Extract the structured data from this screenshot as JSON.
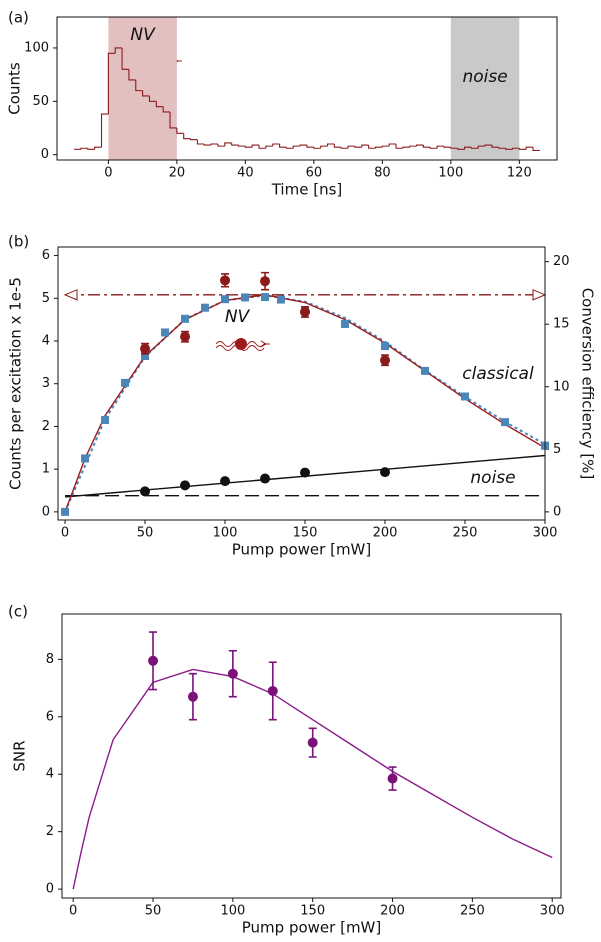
{
  "chart_data": [
    {
      "type": "histogram",
      "panel_label": "(a)",
      "xlabel": "Time [ns]",
      "ylabel": "Counts",
      "bins": [
        -10,
        -8,
        -6,
        -4,
        -2,
        0,
        2,
        4,
        6,
        8,
        10,
        12,
        14,
        16,
        18,
        20,
        22,
        24,
        26,
        28,
        30,
        32,
        34,
        36,
        38,
        40,
        42,
        44,
        46,
        48,
        50,
        52,
        54,
        56,
        58,
        60,
        62,
        64,
        66,
        68,
        70,
        72,
        74,
        76,
        78,
        80,
        82,
        84,
        86,
        88,
        90,
        92,
        94,
        96,
        98,
        100,
        102,
        104,
        106,
        108,
        110,
        112,
        114,
        116,
        118,
        120,
        122,
        124,
        126
      ],
      "counts": [
        5,
        6,
        5,
        7,
        38,
        95,
        100,
        80,
        70,
        60,
        55,
        50,
        45,
        40,
        25,
        20,
        15,
        14,
        10,
        9,
        10,
        8,
        11,
        9,
        8,
        7,
        9,
        6,
        8,
        10,
        7,
        6,
        8,
        9,
        7,
        6,
        8,
        10,
        7,
        6,
        8,
        7,
        9,
        6,
        7,
        8,
        10,
        6,
        7,
        8,
        9,
        7,
        6,
        8,
        7,
        6,
        5,
        7,
        6,
        8,
        9,
        7,
        6,
        5,
        6,
        5,
        7,
        4
      ],
      "color": "#8b1a1a",
      "xlim": [
        -15,
        131
      ],
      "ylim": [
        -5,
        129
      ],
      "xticks": [
        0,
        20,
        40,
        60,
        80,
        100,
        120
      ],
      "yticks": [
        0,
        50,
        100
      ],
      "regions": [
        {
          "start": 0,
          "end": 20,
          "label": "NV",
          "color": "#e3c0c0",
          "label_color": "#a01c1c"
        },
        {
          "start": 100,
          "end": 120,
          "label": "noise",
          "color": "#c9c9c9",
          "label_color": "#111111"
        }
      ]
    },
    {
      "type": "scatter",
      "panel_label": "(b)",
      "xlabel": "Pump power [mW]",
      "ylabel": "Counts per excitation x 1e-5",
      "y2label": "Conversion efficiency [%]",
      "xlim": [
        -4.4,
        300
      ],
      "ylim": [
        -0.19,
        6.2
      ],
      "y2lim": [
        -0.65,
        21.17
      ],
      "xticks": [
        0,
        50,
        100,
        150,
        200,
        250,
        300
      ],
      "yticks": [
        0,
        1,
        2,
        3,
        4,
        5,
        6
      ],
      "y2ticks": [
        0,
        5,
        10,
        15,
        20
      ],
      "annotations": [
        {
          "text": "NV",
          "color": "#a01c1c"
        },
        {
          "text": "classical",
          "color": "#5b9bc8"
        },
        {
          "text": "noise",
          "color": "#111111"
        }
      ],
      "series": [
        {
          "x": [
            0,
            300
          ],
          "values": [
            5.08,
            5.08
          ],
          "color": "#8b1a1a",
          "line": "dashdot",
          "arrows": true
        },
        {
          "x": [
            0,
            300
          ],
          "values": [
            0.38,
            0.38
          ],
          "color": "#111111",
          "line": "dashed"
        },
        {
          "x": [
            0,
            300
          ],
          "values": [
            0.35,
            1.32
          ],
          "color": "#111111",
          "line": "solid"
        },
        {
          "x": [
            0,
            25,
            50,
            75,
            100,
            125,
            150,
            175,
            200,
            225,
            250,
            275,
            300
          ],
          "values": [
            0,
            7.4,
            12.4,
            15.4,
            16.9,
            17.3,
            16.8,
            15.5,
            13.6,
            11.3,
            9.2,
            7.2,
            5.4
          ],
          "axis": "y2",
          "color": "#4a86b8",
          "line": "dotted"
        },
        {
          "x": [
            0,
            12.5,
            25,
            37.5,
            50,
            62.5,
            75,
            87.5,
            100,
            112.5,
            125,
            135,
            150,
            175,
            200,
            225,
            250,
            275,
            300
          ],
          "values": [
            0,
            4.27,
            7.34,
            10.31,
            12.46,
            14.34,
            15.43,
            16.32,
            17.0,
            17.14,
            17.17,
            16.97,
            16.11,
            15.02,
            13.25,
            11.27,
            9.22,
            7.17,
            5.29
          ],
          "axis": "y2",
          "color": "#4a86b8",
          "marker": "square"
        },
        {
          "x": [
            0,
            12.5,
            25,
            50,
            75,
            100,
            125,
            150,
            175,
            200,
            225,
            250,
            275,
            300
          ],
          "values": [
            0,
            1.25,
            2.25,
            3.65,
            4.5,
            4.95,
            5.08,
            4.9,
            4.5,
            3.95,
            3.3,
            2.65,
            2.05,
            1.5
          ],
          "color": "#9b1b1b",
          "line": "solid"
        },
        {
          "x": [
            50,
            75,
            100,
            125,
            150,
            200
          ],
          "values": [
            3.82,
            4.1,
            5.42,
            5.4,
            4.68,
            3.55
          ],
          "errors": [
            0.12,
            0.12,
            0.15,
            0.2,
            0.12,
            0.12
          ],
          "color": "#8b1a1a",
          "marker": "circle"
        },
        {
          "x": [
            50,
            75,
            100,
            125,
            150,
            200
          ],
          "values": [
            0.48,
            0.62,
            0.72,
            0.78,
            0.92,
            0.93
          ],
          "errors": [
            0.04,
            0.04,
            0.05,
            0.06,
            0.05,
            0.05
          ],
          "color": "#111111",
          "marker": "circle"
        }
      ]
    },
    {
      "type": "scatter",
      "panel_label": "(c)",
      "xlabel": "Pump power [mW]",
      "ylabel": "SNR",
      "xlim": [
        -7,
        305.5
      ],
      "ylim": [
        -0.31,
        9.58
      ],
      "xticks": [
        0,
        50,
        100,
        150,
        200,
        250,
        300
      ],
      "yticks": [
        0,
        2,
        4,
        6,
        8
      ],
      "series": [
        {
          "x": [
            0,
            5,
            10,
            25,
            50,
            75,
            100,
            125,
            150,
            175,
            200,
            225,
            250,
            275,
            300
          ],
          "values": [
            0,
            1.3,
            2.5,
            5.2,
            7.2,
            7.65,
            7.4,
            6.8,
            5.9,
            5.0,
            4.1,
            3.3,
            2.5,
            1.75,
            1.1
          ],
          "color": "#8b1a8b",
          "line": "solid"
        },
        {
          "x": [
            50,
            75,
            100,
            125,
            150,
            200
          ],
          "values": [
            7.95,
            6.7,
            7.5,
            6.9,
            5.1,
            3.85
          ],
          "errors": [
            1.0,
            0.8,
            0.8,
            1.0,
            0.5,
            0.4
          ],
          "color": "#7a127a",
          "marker": "circle"
        }
      ]
    }
  ]
}
